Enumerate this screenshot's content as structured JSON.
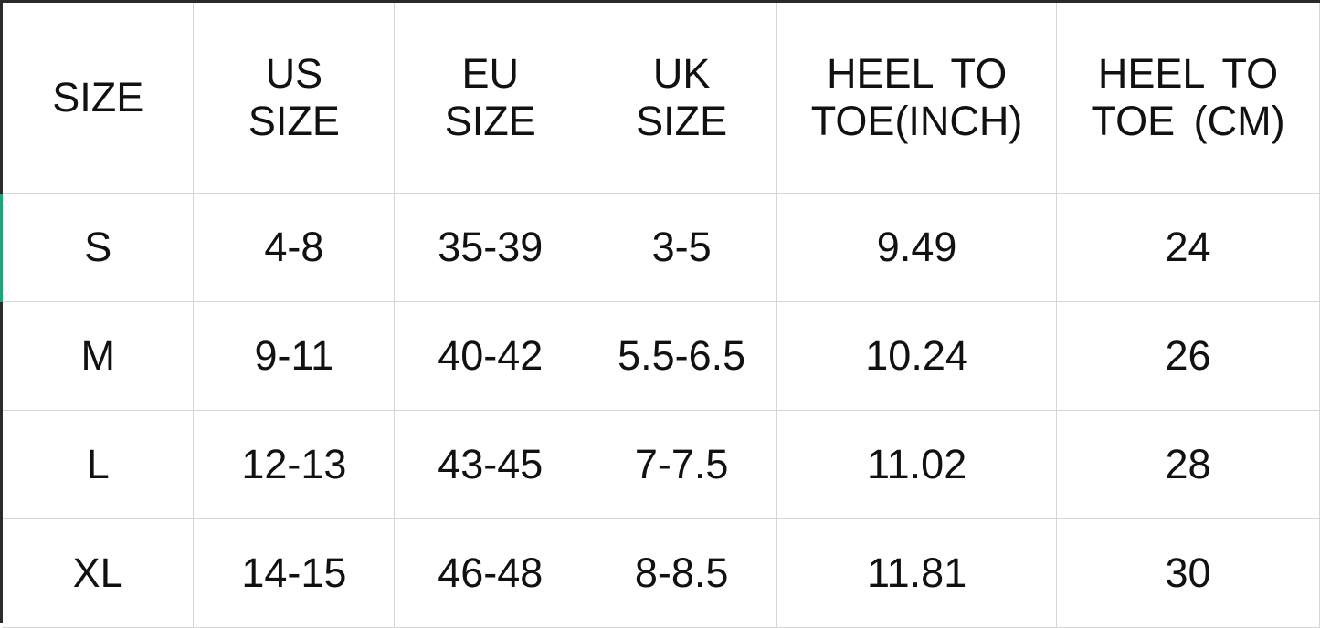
{
  "header": [
    [
      "SIZE"
    ],
    [
      "US",
      "SIZE"
    ],
    [
      "EU",
      "SIZE"
    ],
    [
      "UK",
      "SIZE"
    ],
    [
      "HEEL TO",
      "TOE(INCH)"
    ],
    [
      "HEEL TO",
      "TOE (CM)"
    ]
  ],
  "rows": [
    [
      "S",
      "4-8",
      "35-39",
      "3-5",
      "9.49",
      "24"
    ],
    [
      "M",
      "9-11",
      "40-42",
      "5.5-6.5",
      "10.24",
      "26"
    ],
    [
      "L",
      "12-13",
      "43-45",
      "7-7.5",
      "11.02",
      "28"
    ],
    [
      "XL",
      "14-15",
      "46-48",
      "8-8.5",
      "11.81",
      "30"
    ]
  ],
  "colors": {
    "accent": "#1fa37a",
    "border": "#d6d6d6",
    "frame": "#2b2b2b"
  }
}
